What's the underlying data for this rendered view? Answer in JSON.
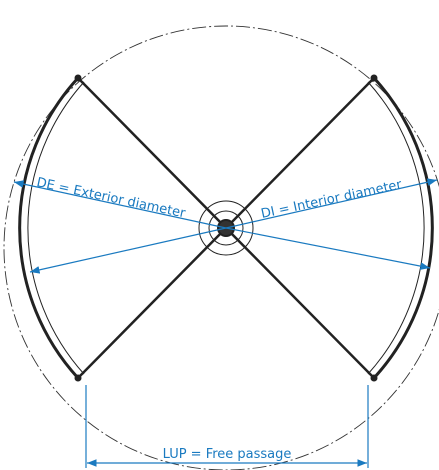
{
  "labels": {
    "exterior": "DE = Exterior diameter",
    "interior": "DI = Interior diameter",
    "passage": "LUP = Free passage"
  }
}
